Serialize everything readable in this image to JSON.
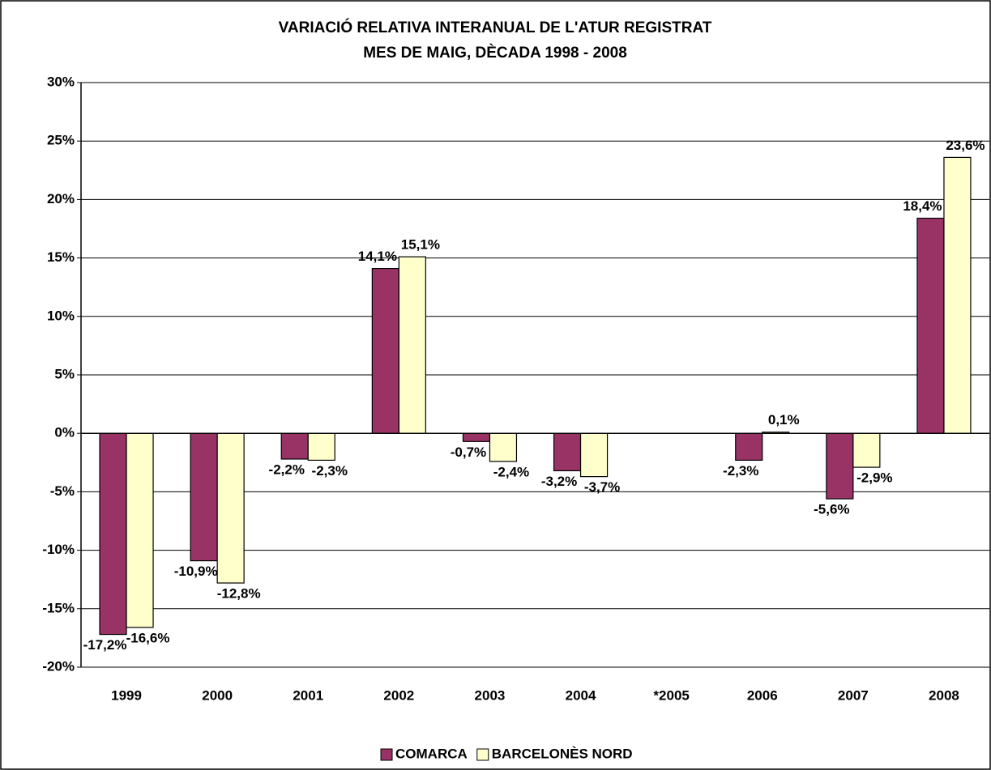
{
  "chart_data": {
    "type": "bar",
    "title": [
      "VARIACIÓ RELATIVA INTERANUAL DE L'ATUR REGISTRAT",
      "MES DE MAIG, DÈCADA 1998 - 2008"
    ],
    "categories": [
      "1999",
      "2000",
      "2001",
      "2002",
      "2003",
      "2004",
      "*2005",
      "2006",
      "2007",
      "2008"
    ],
    "series": [
      {
        "name": "COMARCA",
        "color": "#993366",
        "values": [
          -17.2,
          -10.9,
          -2.2,
          14.1,
          -0.7,
          -3.2,
          null,
          -2.3,
          -5.6,
          18.4
        ],
        "value_labels": [
          "-17,2%",
          "-10,9%",
          "-2,2%",
          "14,1%",
          "-0,7%",
          "-3,2%",
          null,
          "-2,3%",
          "-5,6%",
          "18,4%"
        ]
      },
      {
        "name": "BARCELONÈS NORD",
        "color": "#ffffcc",
        "values": [
          -16.6,
          -12.8,
          -2.3,
          15.1,
          -2.4,
          -3.7,
          null,
          0.1,
          -2.9,
          23.6
        ],
        "value_labels": [
          "-16,6%",
          "-12,8%",
          "-2,3%",
          "15,1%",
          "-2,4%",
          "-3,7%",
          null,
          "0,1%",
          "-2,9%",
          "23,6%"
        ]
      }
    ],
    "ylim": [
      -20,
      30
    ],
    "yticks": [
      {
        "value": -20,
        "label": "-20%"
      },
      {
        "value": -15,
        "label": "-15%"
      },
      {
        "value": -10,
        "label": "-10%"
      },
      {
        "value": -5,
        "label": "-5%"
      },
      {
        "value": 0,
        "label": "0%"
      },
      {
        "value": 5,
        "label": "5%"
      },
      {
        "value": 10,
        "label": "10%"
      },
      {
        "value": 15,
        "label": "15%"
      },
      {
        "value": 20,
        "label": "20%"
      },
      {
        "value": 25,
        "label": "25%"
      },
      {
        "value": 30,
        "label": "30%"
      }
    ],
    "grid": true,
    "legend": "bottom"
  }
}
